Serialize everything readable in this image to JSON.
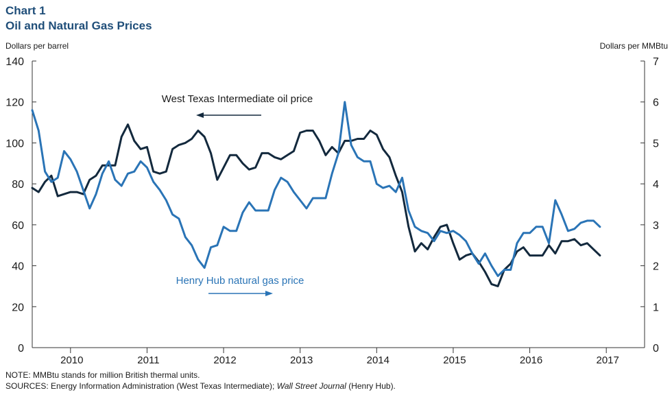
{
  "header": {
    "chart_label": "Chart 1",
    "title": "Oil and Natural Gas Prices",
    "left_unit": "Dollars per barrel",
    "right_unit": "Dollars per MMBtu"
  },
  "footer": {
    "note": "NOTE: MMBtu stands for million British thermal units.",
    "sources_prefix": "SOURCES: Energy Information Administration (West Texas Intermediate); ",
    "sources_italic": "Wall Street Journal",
    "sources_suffix": " (Henry Hub)."
  },
  "chart_data": {
    "type": "line",
    "x_labels": [
      "2010",
      "2011",
      "2012",
      "2013",
      "2014",
      "2015",
      "2016",
      "2017"
    ],
    "x_range_years": [
      2009.5,
      2017.5
    ],
    "y_left": {
      "label": "Dollars per barrel",
      "min": 0,
      "max": 140,
      "ticks": [
        0,
        20,
        40,
        60,
        80,
        100,
        120,
        140
      ]
    },
    "y_right": {
      "label": "Dollars per MMBtu",
      "min": 0,
      "max": 7,
      "ticks": [
        0,
        1,
        2,
        3,
        4,
        5,
        6,
        7
      ]
    },
    "grid": false,
    "series": [
      {
        "name": "West Texas Intermediate oil price",
        "axis": "left",
        "color": "#13293d",
        "start": "2009-07",
        "frequency": "monthly",
        "values": [
          78,
          76,
          81,
          84,
          74,
          75,
          76,
          76,
          75,
          82,
          84,
          89,
          89,
          89,
          103,
          109,
          101,
          97,
          98,
          86,
          85,
          86,
          97,
          99,
          100,
          102,
          106,
          103,
          95,
          82,
          88,
          94,
          94,
          90,
          87,
          88,
          95,
          95,
          93,
          92,
          94,
          96,
          105,
          106,
          106,
          101,
          94,
          98,
          95,
          101,
          101,
          102,
          102,
          106,
          104,
          97,
          93,
          84,
          76,
          59,
          47,
          51,
          48,
          54,
          59,
          60,
          51,
          43,
          45,
          46,
          42,
          37,
          31,
          30,
          38,
          41,
          47,
          49,
          45,
          45,
          45,
          50,
          46,
          52,
          52,
          53,
          50,
          51,
          48,
          45
        ]
      },
      {
        "name": "Henry Hub natural gas price",
        "axis": "right",
        "color": "#2a74b6",
        "start": "2009-07",
        "frequency": "monthly",
        "values": [
          5.8,
          5.3,
          4.3,
          4.05,
          4.15,
          4.8,
          4.6,
          4.3,
          3.85,
          3.4,
          3.75,
          4.25,
          4.55,
          4.1,
          3.95,
          4.25,
          4.3,
          4.55,
          4.4,
          4.05,
          3.85,
          3.6,
          3.25,
          3.15,
          2.7,
          2.5,
          2.15,
          1.95,
          2.45,
          2.5,
          2.95,
          2.85,
          2.85,
          3.3,
          3.55,
          3.35,
          3.35,
          3.35,
          3.85,
          4.15,
          4.05,
          3.8,
          3.6,
          3.4,
          3.65,
          3.65,
          3.65,
          4.25,
          4.75,
          6.0,
          4.95,
          4.65,
          4.55,
          4.55,
          4.0,
          3.9,
          3.95,
          3.8,
          4.15,
          3.35,
          2.95,
          2.85,
          2.8,
          2.6,
          2.85,
          2.8,
          2.85,
          2.75,
          2.6,
          2.3,
          2.05,
          2.3,
          2.0,
          1.75,
          1.9,
          1.9,
          2.55,
          2.8,
          2.8,
          2.95,
          2.95,
          2.55,
          3.6,
          3.25,
          2.85,
          2.9,
          3.05,
          3.1,
          3.1,
          2.95
        ]
      }
    ],
    "annotations": [
      {
        "text": "West Texas Intermediate oil price",
        "arrow": "left"
      },
      {
        "text": "Henry Hub natural gas price",
        "arrow": "right"
      }
    ]
  }
}
